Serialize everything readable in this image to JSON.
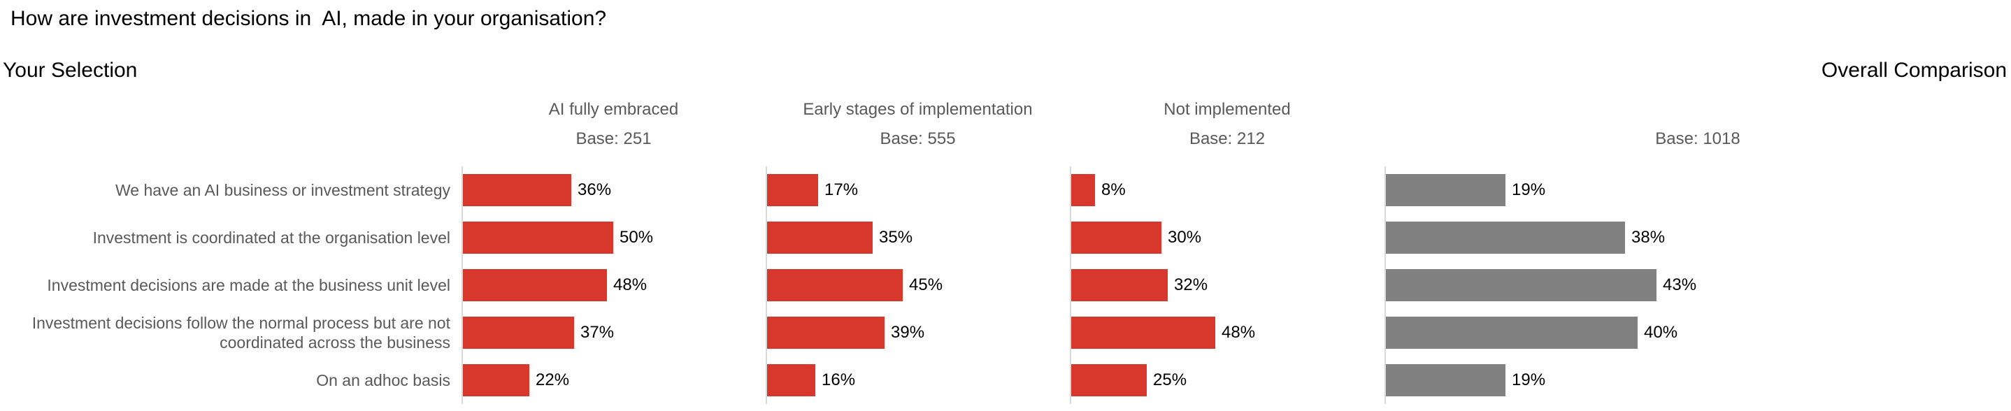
{
  "title": "How are investment decisions in  AI, made in your organisation?",
  "sections": {
    "left": "Your Selection",
    "right": "Overall Comparison"
  },
  "colors": {
    "selection_bar": "#d8382c",
    "overall_bar": "#808080",
    "muted_text": "#595959",
    "axis_line": "#d9d9d9"
  },
  "chart_data": {
    "type": "bar",
    "orientation": "horizontal",
    "title": "How are investment decisions in AI, made in your organisation?",
    "value_suffix": "%",
    "xlim": [
      0,
      100
    ],
    "grid": false,
    "categories": [
      "We have an AI business or investment strategy",
      "Investment is coordinated at the organisation level",
      "Investment decisions are made at the business unit level",
      "Investment decisions follow the normal process but are not coordinated across the business",
      "On an adhoc basis"
    ],
    "groups": [
      {
        "label": "AI fully embraced",
        "base": "Base: 251",
        "color": "#d8382c",
        "values": [
          36,
          50,
          48,
          37,
          22
        ]
      },
      {
        "label": "Early stages of implementation",
        "base": "Base: 555",
        "color": "#d8382c",
        "values": [
          17,
          35,
          45,
          39,
          16
        ]
      },
      {
        "label": "Not implemented",
        "base": "Base: 212",
        "color": "#d8382c",
        "values": [
          8,
          30,
          32,
          48,
          25
        ]
      },
      {
        "label": "",
        "base": "Base: 1018",
        "color": "#808080",
        "values": [
          19,
          38,
          43,
          40,
          19
        ]
      }
    ]
  }
}
